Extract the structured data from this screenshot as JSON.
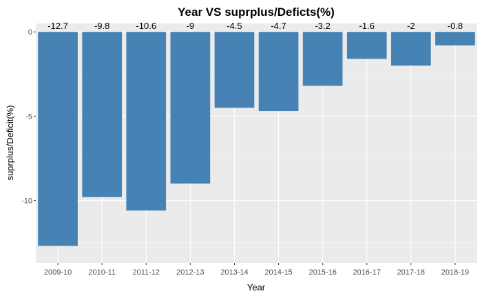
{
  "chart_data": {
    "type": "bar",
    "title": "Year VS  suprplus/Deficts(%)",
    "xlabel": "Year",
    "ylabel": "suprplus/Deficit(%)",
    "categories": [
      "2009-10",
      "2010-11",
      "2011-12",
      "2012-13",
      "2013-14",
      "2014-15",
      "2015-16",
      "2016-17",
      "2017-18",
      "2018-19"
    ],
    "values": [
      -12.7,
      -9.8,
      -10.6,
      -9,
      -4.5,
      -4.7,
      -3.2,
      -1.6,
      -2,
      -0.8
    ],
    "data_labels": [
      "-12.7",
      "-9.8",
      "-10.6",
      "-9",
      "-4.5",
      "-4.7",
      "-3.2",
      "-1.6",
      "-2",
      "-0.8"
    ],
    "y_axis_reversed": true,
    "yticks": [
      0,
      -5,
      -10
    ],
    "ytick_labels": [
      "0",
      "-5",
      "-10"
    ],
    "ylim": [
      0.5,
      -13.7
    ],
    "grid": true,
    "legend": "none",
    "colors": {
      "bar": "#4682b4",
      "panel_background": "#ebebeb",
      "grid_major": "#ffffff",
      "grid_minor": "#f5f5f5"
    }
  }
}
